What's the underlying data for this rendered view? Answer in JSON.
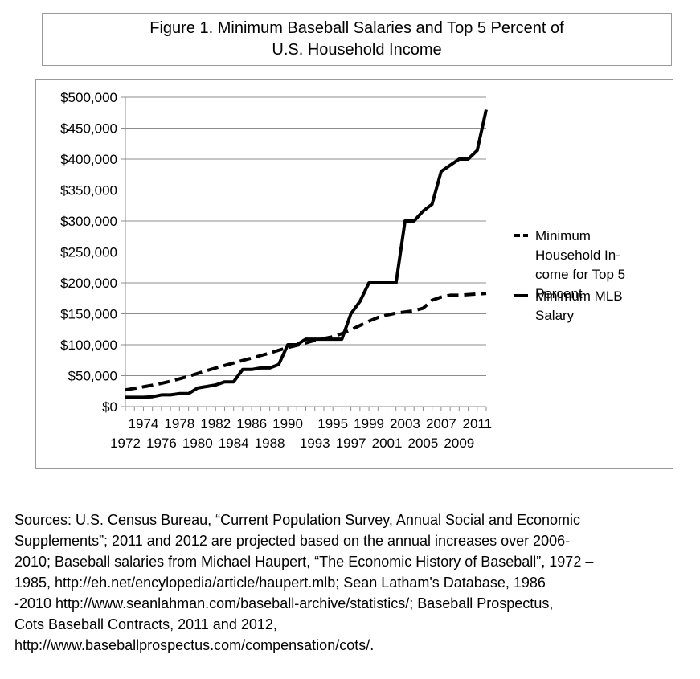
{
  "title_lines": [
    "Figure 1. Minimum Baseball Salaries and Top 5 Percent of",
    "U.S. Household Income"
  ],
  "chart_data": {
    "type": "line",
    "title": "Figure 1. Minimum Baseball Salaries and Top 5 Percent of U.S. Household Income",
    "xlabel": "",
    "ylabel": "",
    "x": [
      1972,
      1973,
      1974,
      1975,
      1976,
      1977,
      1978,
      1979,
      1980,
      1981,
      1982,
      1983,
      1984,
      1985,
      1986,
      1987,
      1988,
      1989,
      1990,
      1991,
      1992,
      1993,
      1994,
      1995,
      1996,
      1997,
      1998,
      1999,
      2000,
      2001,
      2002,
      2003,
      2004,
      2005,
      2006,
      2007,
      2008,
      2009,
      2010,
      2011,
      2012
    ],
    "x_tick_labels_top": [
      "1974",
      "1978",
      "1982",
      "1986",
      "1990",
      "1995",
      "1999",
      "2003",
      "2007",
      "2011"
    ],
    "x_tick_labels_bottom": [
      "1972",
      "1976",
      "1980",
      "1984",
      "1988",
      "1993",
      "1997",
      "2001",
      "2005",
      "2009"
    ],
    "ylim": [
      0,
      500000
    ],
    "y_ticks": [
      "$0",
      "$50,000",
      "$100,000",
      "$150,000",
      "$200,000",
      "$250,000",
      "$300,000",
      "$350,000",
      "$400,000",
      "$450,000",
      "$500,000"
    ],
    "grid": true,
    "legend_placement": "right",
    "series": [
      {
        "name": "Minimum Household Income for Top 5 Percent",
        "legend_lines": [
          "Minimum",
          "Household In-",
          "come for Top 5",
          "Percent"
        ],
        "style": "dashed",
        "color": "#000000",
        "values": [
          27000,
          29500,
          32000,
          34500,
          37500,
          41000,
          45000,
          49000,
          53500,
          58000,
          62500,
          66500,
          70500,
          74500,
          78500,
          82500,
          86500,
          91000,
          95500,
          99000,
          103000,
          107000,
          110000,
          113000,
          118000,
          124000,
          131000,
          138000,
          144000,
          148000,
          151000,
          153000,
          155000,
          159000,
          172000,
          177000,
          180000,
          180000,
          181000,
          182000,
          183000
        ]
      },
      {
        "name": "Minimum MLB Salary",
        "legend_lines": [
          "Minimum MLB",
          "Salary"
        ],
        "style": "solid",
        "color": "#000000",
        "values": [
          15000,
          15000,
          15000,
          16000,
          19000,
          19000,
          21000,
          21000,
          30000,
          32500,
          35000,
          40000,
          40000,
          60000,
          60000,
          62500,
          62500,
          68000,
          100000,
          100000,
          109000,
          109000,
          109000,
          109000,
          109000,
          150000,
          170000,
          200000,
          200000,
          200000,
          200000,
          300000,
          300000,
          316000,
          327000,
          380000,
          390000,
          400000,
          400000,
          414000,
          480000
        ]
      }
    ]
  },
  "sources_lines": [
    "Sources: U.S. Census Bureau, “Current Population Survey, Annual Social and Economic",
    "Supplements”;  2011 and 2012 are projected based on the annual increases over 2006-",
    "2010;  Baseball salaries from Michael Haupert, “The Economic History of Baseball”, 1972 –",
    "1985,  http://eh.net/encylopedia/article/haupert.mlb;  Sean Latham's Database, 1986",
    "-2010 http://www.seanlahman.com/baseball-archive/statistics/; Baseball Prospectus,",
    "Cots Baseball Contracts, 2011 and 2012,",
    "http://www.baseballprospectus.com/compensation/cots/."
  ]
}
